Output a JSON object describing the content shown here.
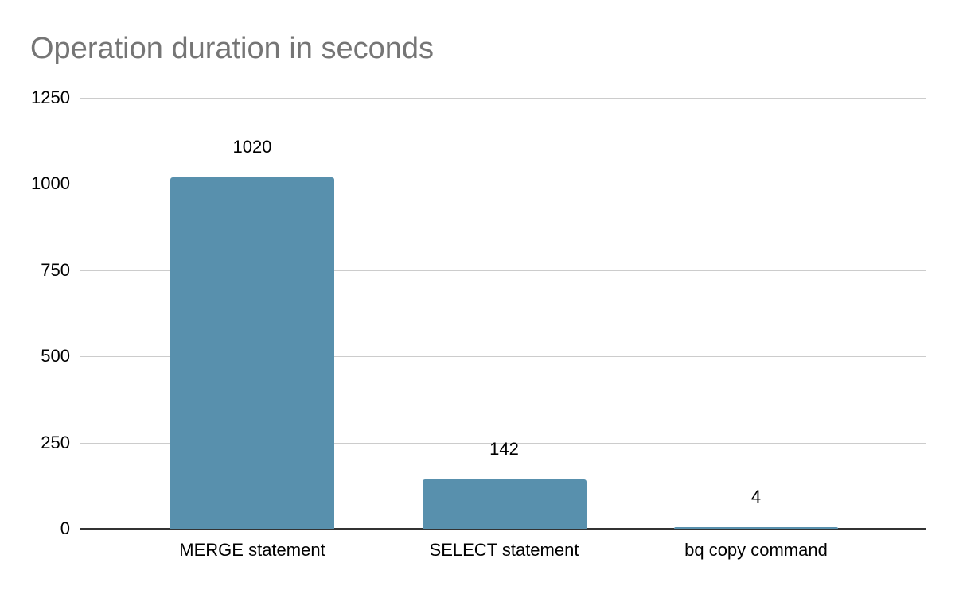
{
  "chart_data": {
    "type": "bar",
    "title": "Operation duration in seconds",
    "categories": [
      "MERGE statement",
      "SELECT statement",
      "bq copy command"
    ],
    "values": [
      1020,
      142,
      4
    ],
    "yticks": [
      0,
      250,
      500,
      750,
      1000,
      1250
    ],
    "ylim": [
      0,
      1250
    ],
    "xlabel": "",
    "ylabel": "",
    "grid": true,
    "legend_position": "none",
    "colors": {
      "bar": "#5890AD",
      "title": "#757575",
      "gridline": "#cccccc",
      "axis_line": "#333333",
      "labels": "#000000",
      "background": "#ffffff"
    }
  }
}
